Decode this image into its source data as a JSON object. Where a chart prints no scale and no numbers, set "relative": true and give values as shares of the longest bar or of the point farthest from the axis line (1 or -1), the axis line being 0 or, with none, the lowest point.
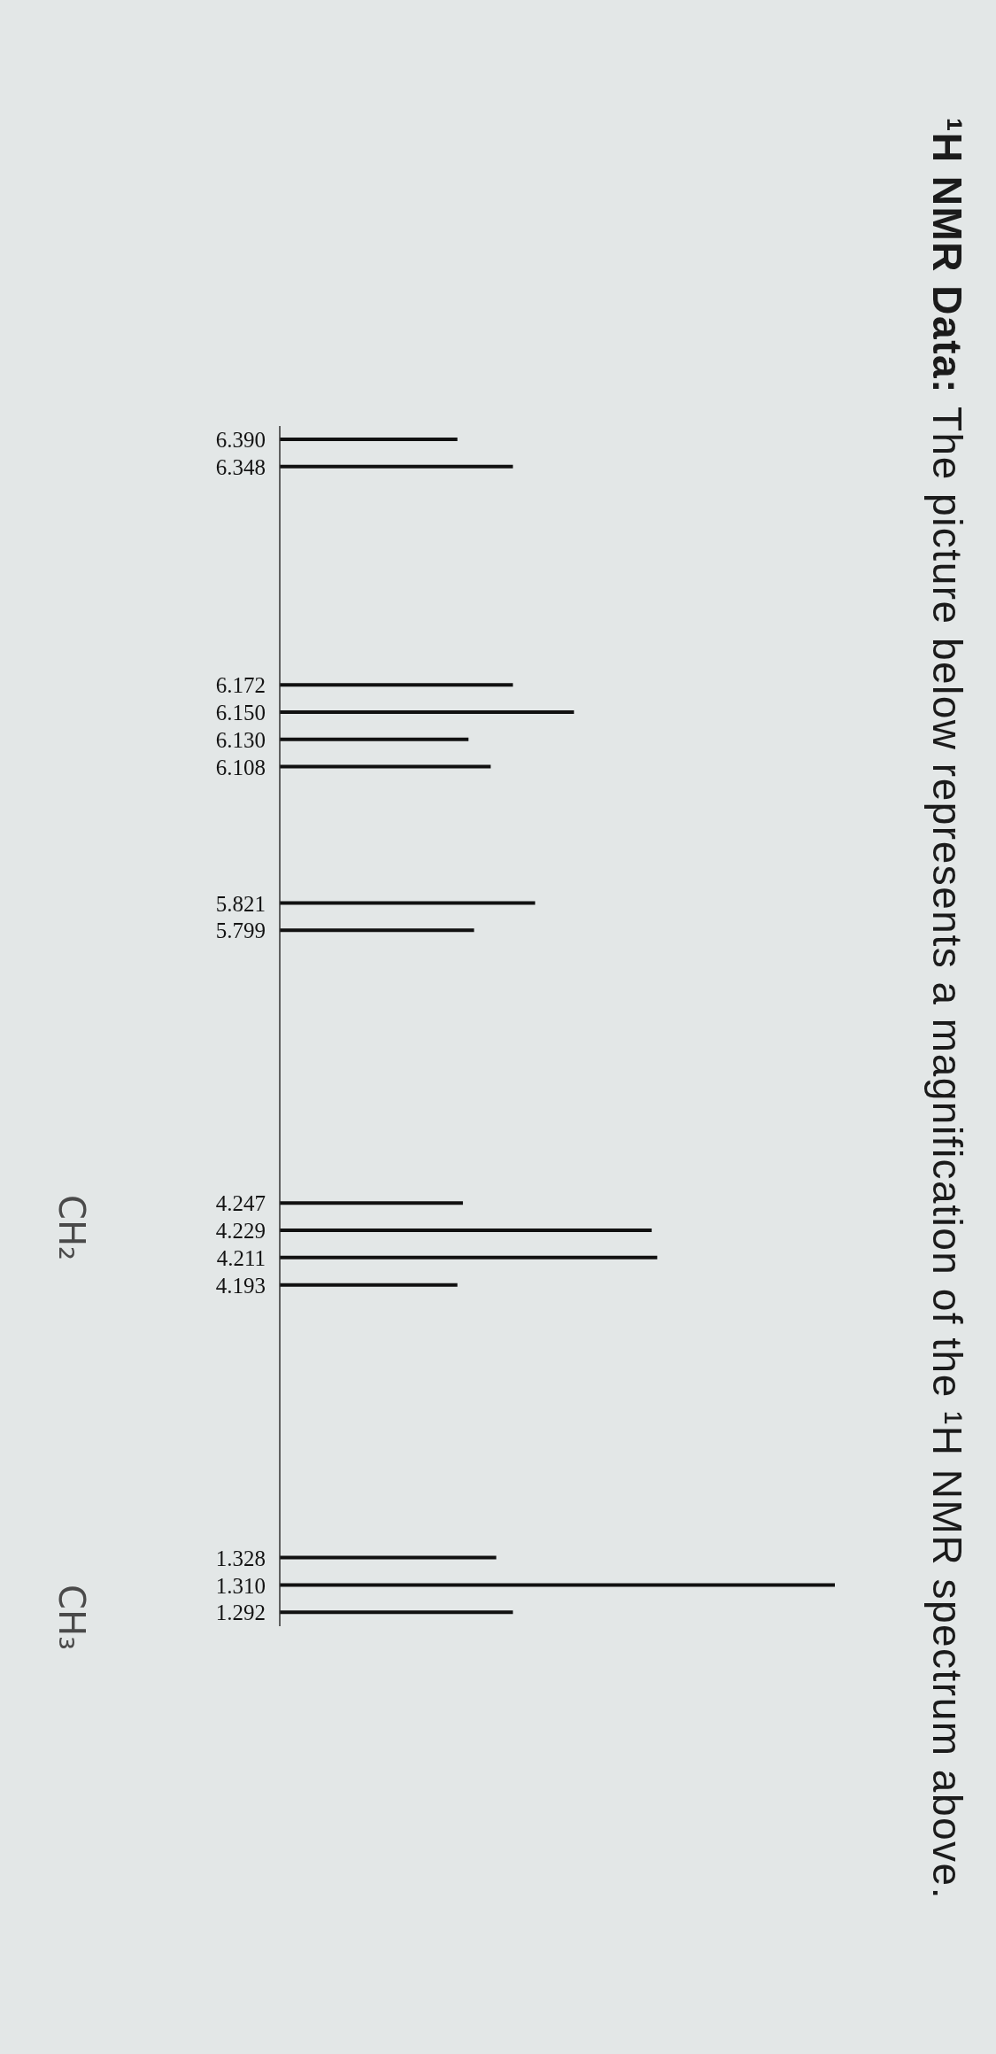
{
  "chart_data": {
    "type": "bar",
    "orientation": "horizontal",
    "title": "¹H NMR Data:",
    "subtitle": "The picture below represents a magnification of the ¹H NMR spectrum above.",
    "categories": [
      "6.390",
      "6.348",
      null,
      null,
      null,
      null,
      null,
      null,
      null,
      "6.172",
      "6.150",
      "6.130",
      "6.108",
      null,
      null,
      null,
      null,
      "5.821",
      "5.799",
      null,
      null,
      null,
      null,
      null,
      null,
      null,
      null,
      null,
      "4.247",
      "4.229",
      "4.211",
      "4.193",
      null,
      null,
      null,
      null,
      null,
      null,
      null,
      null,
      null,
      "1.328",
      "1.310",
      "1.292"
    ],
    "values": [
      0.32,
      0.42,
      null,
      null,
      null,
      null,
      null,
      null,
      null,
      0.42,
      0.53,
      0.34,
      0.38,
      null,
      null,
      null,
      null,
      0.46,
      0.35,
      null,
      null,
      null,
      null,
      null,
      null,
      null,
      null,
      null,
      0.33,
      0.67,
      0.68,
      0.32,
      null,
      null,
      null,
      null,
      null,
      null,
      null,
      null,
      null,
      0.39,
      1,
      0.42
    ],
    "color": "#111111",
    "relative": true,
    "annotations": [
      "CH₂",
      "CH₃"
    ]
  }
}
